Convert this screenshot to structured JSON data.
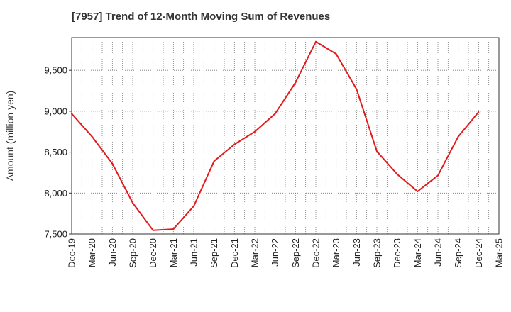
{
  "chart_data": {
    "type": "line",
    "title": "[7957]  Trend of 12-Month Moving Sum of Revenues",
    "xlabel": "",
    "ylabel": "Amount (million yen)",
    "ylim": [
      7500,
      9900
    ],
    "yticks": [
      7500,
      8000,
      8500,
      9000,
      9500
    ],
    "ytick_labels": [
      "7,500",
      "8,000",
      "8,500",
      "9,000",
      "9,500"
    ],
    "categories": [
      "Dec-19",
      "Mar-20",
      "Jun-20",
      "Sep-20",
      "Dec-20",
      "Mar-21",
      "Jun-21",
      "Sep-21",
      "Dec-21",
      "Mar-22",
      "Jun-22",
      "Sep-22",
      "Dec-22",
      "Mar-23",
      "Jun-23",
      "Sep-23",
      "Dec-23",
      "Mar-24",
      "Jun-24",
      "Sep-24",
      "Dec-24",
      "Mar-25"
    ],
    "grid": true,
    "series": [
      {
        "color": "#e31a1c",
        "values": [
          8970,
          8690,
          8360,
          7880,
          7545,
          7560,
          7840,
          8390,
          8595,
          8750,
          8970,
          9350,
          9850,
          9700,
          9270,
          8510,
          8230,
          8020,
          8215,
          8690,
          8990,
          null
        ]
      }
    ]
  }
}
